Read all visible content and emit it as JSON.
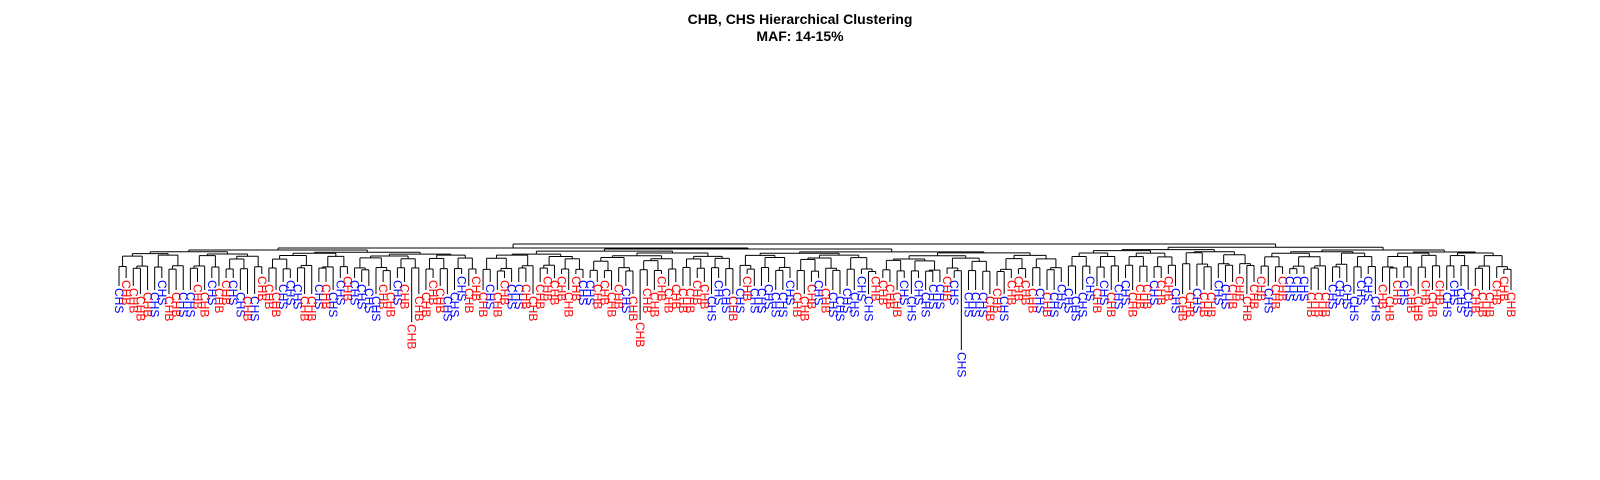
{
  "title": {
    "line1": "CHB, CHS Hierarchical Clustering",
    "line2": "MAF: 14-15%"
  },
  "colors": {
    "CHB": "#ff0000",
    "CHS": "#0000ff",
    "branch": "#000000"
  },
  "chart_data": {
    "type": "dendrogram",
    "title": "CHB, CHS Hierarchical Clustering\nMAF: 14-15%",
    "xlabel": "",
    "ylabel": "",
    "axes": "none",
    "grid": false,
    "legend": "none",
    "categories": [
      "CHB",
      "CHS"
    ],
    "leaves": [
      "CHS",
      "CHB",
      "CHB",
      "CHB",
      "CHB",
      "CHS",
      "CHS",
      "CHB",
      "CHB",
      "CHS",
      "CHS",
      "CHB",
      "CHB",
      "CHS",
      "CHB",
      "CHB",
      "CHS",
      "CHS",
      "CHB",
      "CHS",
      "CHB",
      "CHB",
      "CHB",
      "CHS",
      "CHS",
      "CHS",
      "CHB",
      "CHB",
      "CHS",
      "CHB",
      "CHS",
      "CHS",
      "CHB",
      "CHS",
      "CHS",
      "CHS",
      "CHS",
      "CHB",
      "CHB",
      "CHS",
      "CHB",
      "CHB",
      "CHB",
      "CHB",
      "CHB",
      "CHB",
      "CHS",
      "CHS",
      "CHS",
      "CHB",
      "CHB",
      "CHB",
      "CHS",
      "CHB",
      "CHB",
      "CHS",
      "CHS",
      "CHB",
      "CHB",
      "CHB",
      "CHB",
      "CHB",
      "CHB",
      "CHB",
      "CHB",
      "CHS",
      "CHS",
      "CHB",
      "CHB",
      "CHB",
      "CHB",
      "CHS",
      "CHB",
      "CHB",
      "CHB",
      "CHB",
      "CHB",
      "CHB",
      "CHB",
      "CHB",
      "CHB",
      "CHB",
      "CHB",
      "CHS",
      "CHS",
      "CHS",
      "CHB",
      "CHS",
      "CHB",
      "CHS",
      "CHS",
      "CHS",
      "CHS",
      "CHS",
      "CHS",
      "CHB",
      "CHB",
      "CHB",
      "CHS",
      "CHB",
      "CHS",
      "CHS",
      "CHS",
      "CHS",
      "CHS",
      "CHS",
      "CHB",
      "CHB",
      "CHB",
      "CHB",
      "CHS",
      "CHS",
      "CHS",
      "CHS",
      "CHS",
      "CHS",
      "CHB",
      "CHS",
      "CHS",
      "CHS",
      "CHS",
      "CHS",
      "CHB",
      "CHB",
      "CHS",
      "CHB",
      "CHB",
      "CHB",
      "CHB",
      "CHS",
      "CHB",
      "CHS",
      "CHS",
      "CHS",
      "CHS",
      "CHS",
      "CHS",
      "CHB",
      "CHS",
      "CHB",
      "CHS",
      "CHS",
      "CHB",
      "CHB",
      "CHB",
      "CHS",
      "CHB",
      "CHB",
      "CHS",
      "CHB",
      "CHB",
      "CHS",
      "CHB",
      "CHB",
      "CHS",
      "CHS",
      "CHB",
      "CHB",
      "CHB",
      "CHB",
      "CHB",
      "CHS",
      "CHB",
      "CHB",
      "CHS",
      "CHS",
      "CHS",
      "CHB",
      "CHB",
      "CHB",
      "CHS",
      "CHS",
      "CHS",
      "CHS",
      "CHS",
      "CHS",
      "CHS",
      "CHB",
      "CHB",
      "CHB",
      "CHS",
      "CHB",
      "CHB",
      "CHB",
      "CHB",
      "CHB",
      "CHS",
      "CHS",
      "CHS",
      "CHS",
      "CHB",
      "CHB",
      "CHB",
      "CHB",
      "CHB",
      "CHB"
    ],
    "notes_visible": "Leaf labels rotated vertically, colored by population (CHB red, CHS blue); a few isolated long branches end far below the rest."
  }
}
